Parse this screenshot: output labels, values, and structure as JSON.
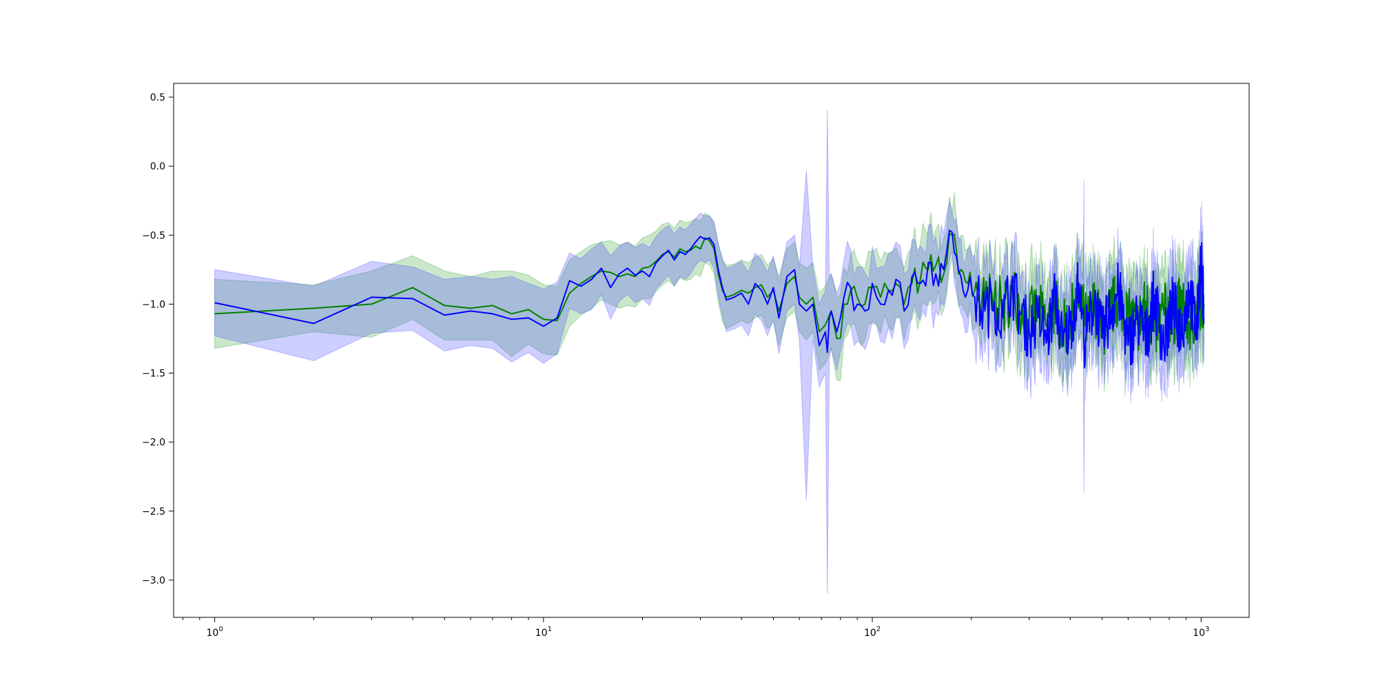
{
  "chart_data": {
    "type": "area",
    "title": "",
    "xlabel": "",
    "ylabel": "",
    "xscale": "log",
    "xlim": [
      0.75,
      1400
    ],
    "ylim": [
      -3.27,
      0.6
    ],
    "grid": false,
    "x_ticks": [
      {
        "base": "10",
        "exp": "0",
        "value": 1
      },
      {
        "base": "10",
        "exp": "1",
        "value": 10
      },
      {
        "base": "10",
        "exp": "2",
        "value": 100
      },
      {
        "base": "10",
        "exp": "3",
        "value": 1000
      }
    ],
    "y_ticks": [
      {
        "label": "0.5",
        "value": 0.5
      },
      {
        "label": "0.0",
        "value": 0.0
      },
      {
        "label": "−0.5",
        "value": -0.5
      },
      {
        "label": "−1.0",
        "value": -1.0
      },
      {
        "label": "−1.5",
        "value": -1.5
      },
      {
        "label": "−2.0",
        "value": -2.0
      },
      {
        "label": "−2.5",
        "value": -2.5
      },
      {
        "label": "−3.0",
        "value": -3.0
      }
    ],
    "series": [
      {
        "color": "#008000",
        "band_color": "#2ca02c",
        "band_opacity": 0.25,
        "x": [
          1,
          2,
          3,
          4,
          5,
          6,
          7,
          8,
          9,
          10,
          11,
          12,
          13,
          14,
          15,
          16,
          17,
          18,
          19,
          20,
          21,
          22,
          23,
          24,
          25,
          26,
          27,
          28,
          29,
          30,
          31,
          32,
          33,
          34,
          35,
          36,
          38,
          40,
          42,
          44,
          46,
          48,
          50,
          52,
          55,
          58,
          60,
          63,
          66,
          69,
          72,
          75,
          78,
          82,
          86,
          90,
          95,
          100,
          106,
          112,
          118,
          125,
          132,
          140,
          148,
          156,
          165,
          175,
          180,
          186,
          195,
          205,
          220,
          235,
          250,
          265,
          280,
          300,
          320,
          340,
          360,
          380,
          400,
          425,
          450,
          475,
          500,
          530,
          560,
          600,
          640,
          680,
          720,
          770,
          820,
          870,
          920,
          970,
          1000,
          1020
        ],
        "y": [
          -1.07,
          -1.03,
          -1.0,
          -0.88,
          -1.01,
          -1.03,
          -1.01,
          -1.07,
          -1.04,
          -1.11,
          -1.12,
          -0.92,
          -0.85,
          -0.8,
          -0.76,
          -0.77,
          -0.8,
          -0.78,
          -0.8,
          -0.74,
          -0.73,
          -0.69,
          -0.64,
          -0.62,
          -0.66,
          -0.6,
          -0.62,
          -0.61,
          -0.58,
          -0.6,
          -0.52,
          -0.54,
          -0.6,
          -0.78,
          -0.9,
          -0.95,
          -0.93,
          -0.9,
          -0.92,
          -0.88,
          -0.86,
          -0.95,
          -0.9,
          -1.05,
          -0.85,
          -0.8,
          -0.95,
          -1.0,
          -0.95,
          -1.2,
          -1.15,
          -1.05,
          -1.25,
          -1.0,
          -0.9,
          -0.95,
          -1.0,
          -0.88,
          -0.95,
          -0.9,
          -0.85,
          -1.0,
          -0.85,
          -0.82,
          -0.75,
          -0.72,
          -0.78,
          -0.5,
          -0.6,
          -0.75,
          -0.85,
          -0.9,
          -1.0,
          -0.95,
          -1.05,
          -0.9,
          -1.0,
          -1.1,
          -1.05,
          -1.15,
          -1.0,
          -1.2,
          -1.1,
          -0.95,
          -1.15,
          -1.0,
          -1.2,
          -1.05,
          -0.95,
          -1.1,
          -1.15,
          -1.0,
          -1.2,
          -1.05,
          -1.1,
          -1.0,
          -1.15,
          -1.05,
          -0.95,
          -1.0
        ],
        "upper": [
          -0.82,
          -0.86,
          -0.76,
          -0.65,
          -0.76,
          -0.8,
          -0.76,
          -0.76,
          -0.79,
          -0.86,
          -0.87,
          -0.68,
          -0.62,
          -0.57,
          -0.55,
          -0.54,
          -0.57,
          -0.55,
          -0.58,
          -0.52,
          -0.5,
          -0.47,
          -0.42,
          -0.41,
          -0.45,
          -0.39,
          -0.41,
          -0.4,
          -0.38,
          -0.4,
          -0.34,
          -0.36,
          -0.42,
          -0.57,
          -0.68,
          -0.72,
          -0.71,
          -0.68,
          -0.7,
          -0.66,
          -0.64,
          -0.72,
          -0.67,
          -0.8,
          -0.6,
          -0.55,
          -0.7,
          -0.74,
          -0.7,
          -0.92,
          -0.87,
          -0.78,
          -0.95,
          -0.74,
          -0.64,
          -0.69,
          -0.74,
          -0.62,
          -0.69,
          -0.64,
          -0.59,
          -0.74,
          -0.59,
          -0.56,
          -0.49,
          -0.46,
          -0.52,
          -0.34,
          -0.38,
          -0.5,
          -0.6,
          -0.62,
          -0.72,
          -0.66,
          -0.74,
          -0.59,
          -0.7,
          -0.8,
          -0.74,
          -0.85,
          -0.7,
          -0.9,
          -0.8,
          -0.65,
          -0.85,
          -0.7,
          -0.9,
          -0.75,
          -0.64,
          -0.8,
          -0.85,
          -0.7,
          -0.9,
          -0.75,
          -0.8,
          -0.7,
          -0.85,
          -0.75,
          -0.64,
          -0.7
        ],
        "lower": [
          -1.32,
          -1.2,
          -1.24,
          -1.11,
          -1.26,
          -1.26,
          -1.26,
          -1.38,
          -1.29,
          -1.36,
          -1.37,
          -1.16,
          -1.08,
          -1.03,
          -0.97,
          -1.0,
          -1.03,
          -1.01,
          -1.02,
          -0.96,
          -0.96,
          -0.91,
          -0.86,
          -0.83,
          -0.87,
          -0.81,
          -0.83,
          -0.82,
          -0.78,
          -0.8,
          -0.7,
          -0.72,
          -0.78,
          -0.99,
          -1.12,
          -1.18,
          -1.15,
          -1.12,
          -1.14,
          -1.1,
          -1.08,
          -1.18,
          -1.13,
          -1.3,
          -1.1,
          -1.05,
          -1.2,
          -1.26,
          -1.2,
          -1.48,
          -1.43,
          -1.32,
          -1.55,
          -1.26,
          -1.16,
          -1.21,
          -1.26,
          -1.14,
          -1.21,
          -1.16,
          -1.11,
          -1.26,
          -1.11,
          -1.08,
          -1.01,
          -0.98,
          -1.04,
          -0.66,
          -0.82,
          -1.0,
          -1.1,
          -1.18,
          -1.28,
          -1.24,
          -1.36,
          -1.21,
          -1.3,
          -1.4,
          -1.36,
          -1.45,
          -1.3,
          -1.5,
          -1.4,
          -1.25,
          -1.45,
          -1.3,
          -1.5,
          -1.35,
          -1.26,
          -1.4,
          -1.45,
          -1.3,
          -1.5,
          -1.35,
          -1.4,
          -1.3,
          -1.45,
          -1.35,
          -1.26,
          -1.3
        ]
      },
      {
        "color": "#0000ff",
        "band_color": "#4f4fff",
        "band_opacity": 0.28,
        "x": [
          1,
          2,
          3,
          4,
          5,
          6,
          7,
          8,
          9,
          10,
          11,
          12,
          13,
          14,
          15,
          16,
          17,
          18,
          19,
          20,
          21,
          22,
          23,
          24,
          25,
          26,
          27,
          28,
          29,
          30,
          31,
          32,
          33,
          34,
          35,
          36,
          38,
          40,
          42,
          44,
          46,
          48,
          50,
          52,
          55,
          58,
          60,
          63,
          66,
          69,
          72,
          73,
          74,
          75,
          78,
          82,
          86,
          90,
          95,
          100,
          106,
          112,
          118,
          125,
          132,
          140,
          148,
          156,
          165,
          175,
          180,
          186,
          195,
          205,
          220,
          235,
          250,
          265,
          280,
          300,
          320,
          340,
          360,
          380,
          400,
          425,
          440,
          450,
          475,
          500,
          530,
          560,
          600,
          640,
          680,
          720,
          770,
          820,
          870,
          920,
          970,
          1000,
          1020
        ],
        "y": [
          -0.99,
          -1.14,
          -0.95,
          -0.96,
          -1.08,
          -1.05,
          -1.07,
          -1.11,
          -1.1,
          -1.16,
          -1.1,
          -0.83,
          -0.87,
          -0.82,
          -0.74,
          -0.88,
          -0.78,
          -0.74,
          -0.79,
          -0.76,
          -0.8,
          -0.7,
          -0.65,
          -0.61,
          -0.68,
          -0.62,
          -0.64,
          -0.6,
          -0.55,
          -0.51,
          -0.53,
          -0.52,
          -0.57,
          -0.75,
          -0.88,
          -0.97,
          -0.95,
          -0.92,
          -1.0,
          -0.85,
          -0.9,
          -1.0,
          -0.88,
          -1.1,
          -0.8,
          -0.75,
          -1.0,
          -1.05,
          -1.0,
          -1.3,
          -1.2,
          -1.35,
          -1.1,
          -1.05,
          -1.2,
          -0.95,
          -0.88,
          -1.0,
          -1.05,
          -0.85,
          -1.0,
          -0.9,
          -0.82,
          -1.05,
          -0.8,
          -0.85,
          -0.7,
          -0.78,
          -0.75,
          -0.48,
          -0.65,
          -0.8,
          -0.9,
          -0.95,
          -1.05,
          -0.98,
          -1.1,
          -0.85,
          -1.05,
          -1.2,
          -1.1,
          -1.25,
          -0.95,
          -1.3,
          -1.15,
          -0.85,
          -1.25,
          -1.2,
          -0.95,
          -1.25,
          -1.05,
          -0.9,
          -1.3,
          -1.1,
          -1.25,
          -0.95,
          -1.3,
          -1.0,
          -1.2,
          -0.9,
          -1.2,
          -0.65,
          -1.1
        ],
        "upper": [
          -0.75,
          -0.87,
          -0.69,
          -0.73,
          -0.82,
          -0.8,
          -0.82,
          -0.8,
          -0.85,
          -0.89,
          -0.84,
          -0.63,
          -0.67,
          -0.6,
          -0.55,
          -0.65,
          -0.58,
          -0.55,
          -0.59,
          -0.56,
          -0.59,
          -0.51,
          -0.46,
          -0.43,
          -0.49,
          -0.44,
          -0.46,
          -0.42,
          -0.38,
          -0.34,
          -0.36,
          -0.36,
          -0.4,
          -0.56,
          -0.67,
          -0.74,
          -0.72,
          -0.69,
          -0.77,
          -0.63,
          -0.68,
          -0.77,
          -0.65,
          -0.84,
          -0.55,
          -0.5,
          -0.74,
          -0.03,
          -0.74,
          -1.0,
          -0.9,
          0.41,
          -0.8,
          -0.78,
          -0.92,
          -0.68,
          -0.61,
          -0.73,
          -0.77,
          -0.58,
          -0.73,
          -0.63,
          -0.55,
          -0.78,
          -0.53,
          -0.58,
          -0.43,
          -0.51,
          -0.49,
          -0.34,
          -0.38,
          -0.53,
          -0.6,
          -0.65,
          -0.74,
          -0.68,
          -0.78,
          -0.54,
          -0.73,
          -0.88,
          -0.79,
          -0.92,
          -0.63,
          -0.96,
          -0.82,
          -0.52,
          -0.1,
          -0.87,
          -0.62,
          -0.92,
          -0.72,
          -0.57,
          -0.97,
          -0.77,
          -0.92,
          -0.62,
          -0.97,
          -0.67,
          -0.87,
          -0.57,
          -0.87,
          -0.38,
          -0.78
        ],
        "lower": [
          -1.23,
          -1.41,
          -1.21,
          -1.19,
          -1.34,
          -1.3,
          -1.32,
          -1.42,
          -1.35,
          -1.43,
          -1.36,
          -1.03,
          -1.07,
          -1.04,
          -0.93,
          -1.11,
          -0.98,
          -0.93,
          -0.99,
          -0.96,
          -1.01,
          -0.89,
          -0.84,
          -0.79,
          -0.87,
          -0.8,
          -0.82,
          -0.78,
          -0.72,
          -0.68,
          -0.7,
          -0.68,
          -0.74,
          -0.94,
          -1.09,
          -1.2,
          -1.18,
          -1.15,
          -1.23,
          -1.07,
          -1.12,
          -1.23,
          -1.11,
          -1.36,
          -1.05,
          -1.0,
          -1.26,
          -2.42,
          -1.26,
          -1.6,
          -1.5,
          -3.1,
          -1.4,
          -1.32,
          -1.48,
          -1.22,
          -1.15,
          -1.27,
          -1.33,
          -1.12,
          -1.27,
          -1.17,
          -1.09,
          -1.32,
          -1.07,
          -1.12,
          -0.97,
          -1.05,
          -1.01,
          -0.62,
          -0.92,
          -1.07,
          -1.2,
          -1.25,
          -1.36,
          -1.28,
          -1.42,
          -1.16,
          -1.37,
          -1.52,
          -1.41,
          -1.58,
          -1.27,
          -1.64,
          -1.48,
          -1.18,
          -2.37,
          -1.53,
          -1.28,
          -1.58,
          -1.38,
          -1.23,
          -1.63,
          -1.43,
          -1.58,
          -1.28,
          -1.63,
          -1.33,
          -1.53,
          -1.23,
          -1.53,
          -0.92,
          -1.42
        ]
      }
    ]
  }
}
